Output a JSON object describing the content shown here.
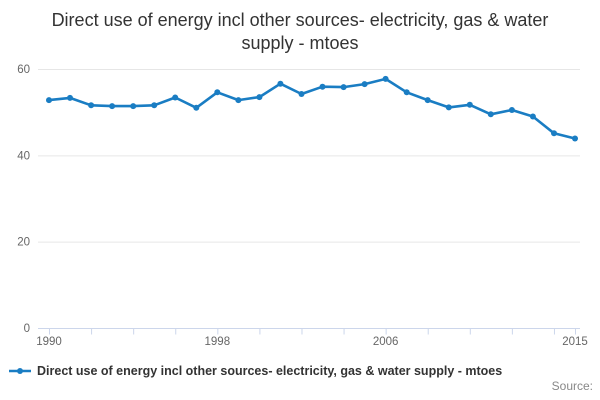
{
  "header": {
    "title": "Direct use of energy incl other sources- electricity, gas & water supply - mtoes"
  },
  "legend": {
    "label": "Direct use of energy incl other sources- electricity, gas & water supply - mtoes"
  },
  "footer": {
    "source": "Source:"
  },
  "colors": {
    "series": "#1a7dc3",
    "grid": "#e6e6e6",
    "axis": "#ccd6eb",
    "tick_label": "#666666",
    "title": "#333333",
    "source": "#888888"
  },
  "chart_data": {
    "type": "line",
    "title": "Direct use of energy incl other sources- electricity, gas & water supply - mtoes",
    "xlabel": "",
    "ylabel": "",
    "x": [
      1990,
      1991,
      1992,
      1993,
      1994,
      1995,
      1996,
      1997,
      1998,
      1999,
      2000,
      2001,
      2002,
      2003,
      2004,
      2005,
      2006,
      2007,
      2008,
      2009,
      2010,
      2011,
      2012,
      2013,
      2014,
      2015
    ],
    "series": [
      {
        "name": "Direct use of energy incl other sources- electricity, gas & water supply - mtoes",
        "values": [
          52.8,
          53.3,
          51.6,
          51.4,
          51.4,
          51.6,
          53.4,
          51.0,
          54.6,
          52.8,
          53.5,
          56.6,
          54.2,
          55.9,
          55.8,
          56.5,
          57.7,
          54.6,
          52.8,
          51.1,
          51.7,
          49.5,
          50.5,
          49.0,
          45.1,
          43.9
        ]
      }
    ],
    "xlim": [
      1990,
      2015
    ],
    "ylim": [
      0,
      60
    ],
    "yticks": [
      0,
      20,
      40,
      60
    ],
    "xtick_step": 2,
    "xtick_labels": [
      1990,
      1998,
      2006,
      2015
    ],
    "grid": "horizontal",
    "legend_position": "bottom-left",
    "marker": "circle"
  }
}
